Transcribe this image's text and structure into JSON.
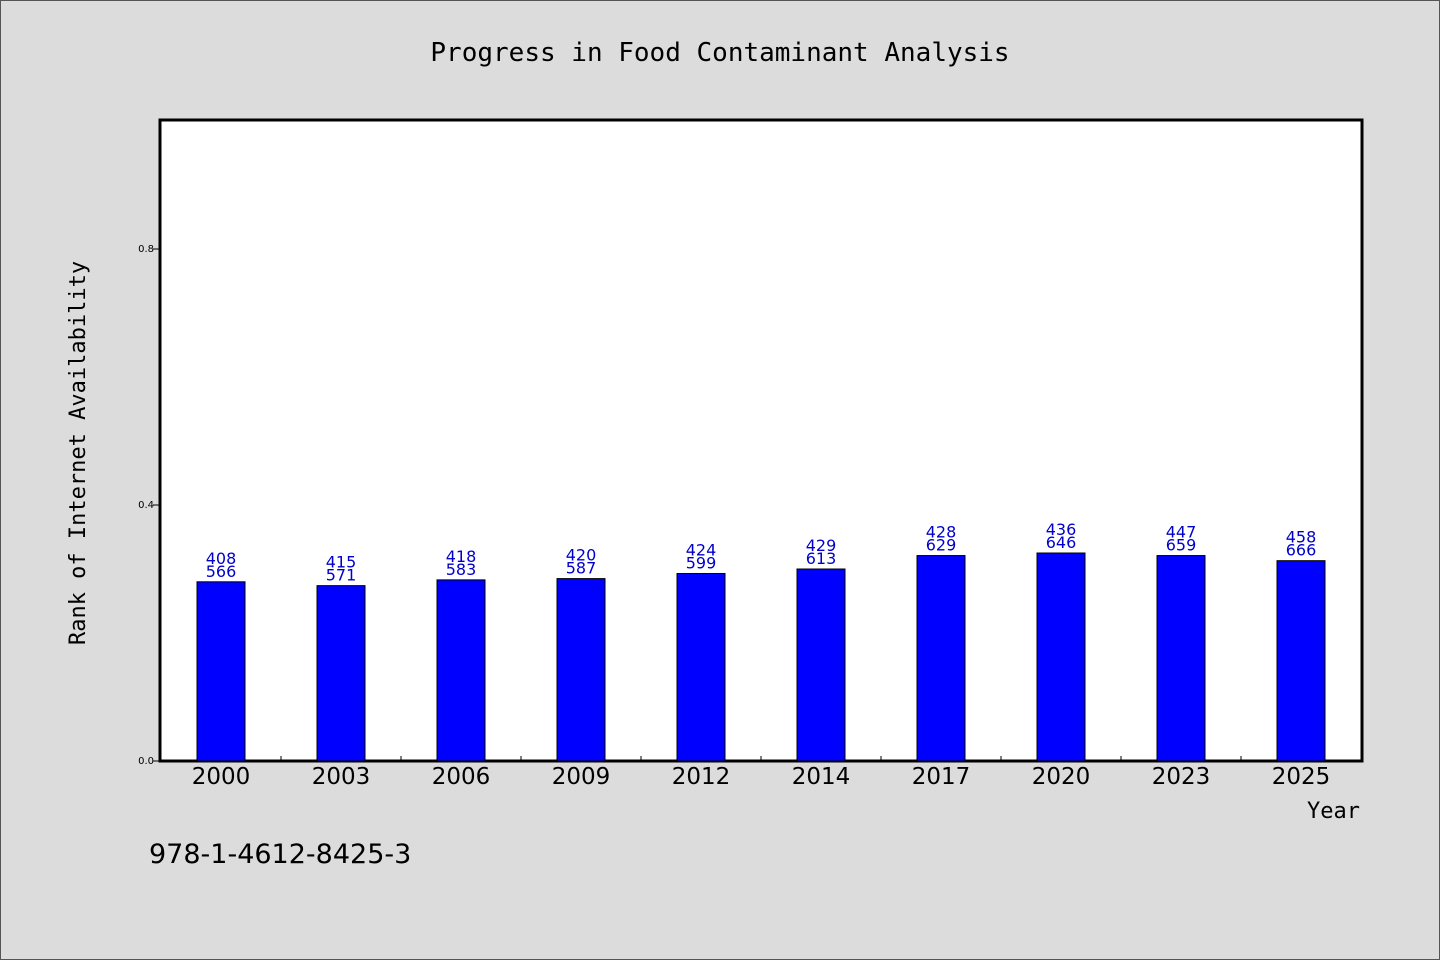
{
  "chart_data": {
    "type": "bar",
    "title": "Progress in Food Contaminant Analysis",
    "xlabel": "Year",
    "ylabel": "Rank of Internet Availability",
    "categories": [
      "2000",
      "2003",
      "2006",
      "2009",
      "2012",
      "2014",
      "2017",
      "2020",
      "2023",
      "2025"
    ],
    "values": [
      0.28,
      0.274,
      0.283,
      0.285,
      0.293,
      0.3,
      0.321,
      0.325,
      0.321,
      0.313
    ],
    "labels_top": [
      "408",
      "415",
      "418",
      "420",
      "424",
      "429",
      "428",
      "436",
      "447",
      "458"
    ],
    "labels_bottom": [
      "566",
      "571",
      "583",
      "587",
      "599",
      "613",
      "629",
      "646",
      "659",
      "666"
    ],
    "ylim": [
      0,
      1.0
    ],
    "yticks": [
      0.0,
      0.4,
      0.8
    ],
    "ytick_labels": [
      "0.0",
      "0.4",
      "0.8"
    ],
    "grid": false,
    "bar_color": "#0000ff",
    "label_color": "#0000cc",
    "background": "#dcdcdc",
    "plot_background": "#ffffff"
  },
  "footnote": "978-1-4612-8425-3"
}
